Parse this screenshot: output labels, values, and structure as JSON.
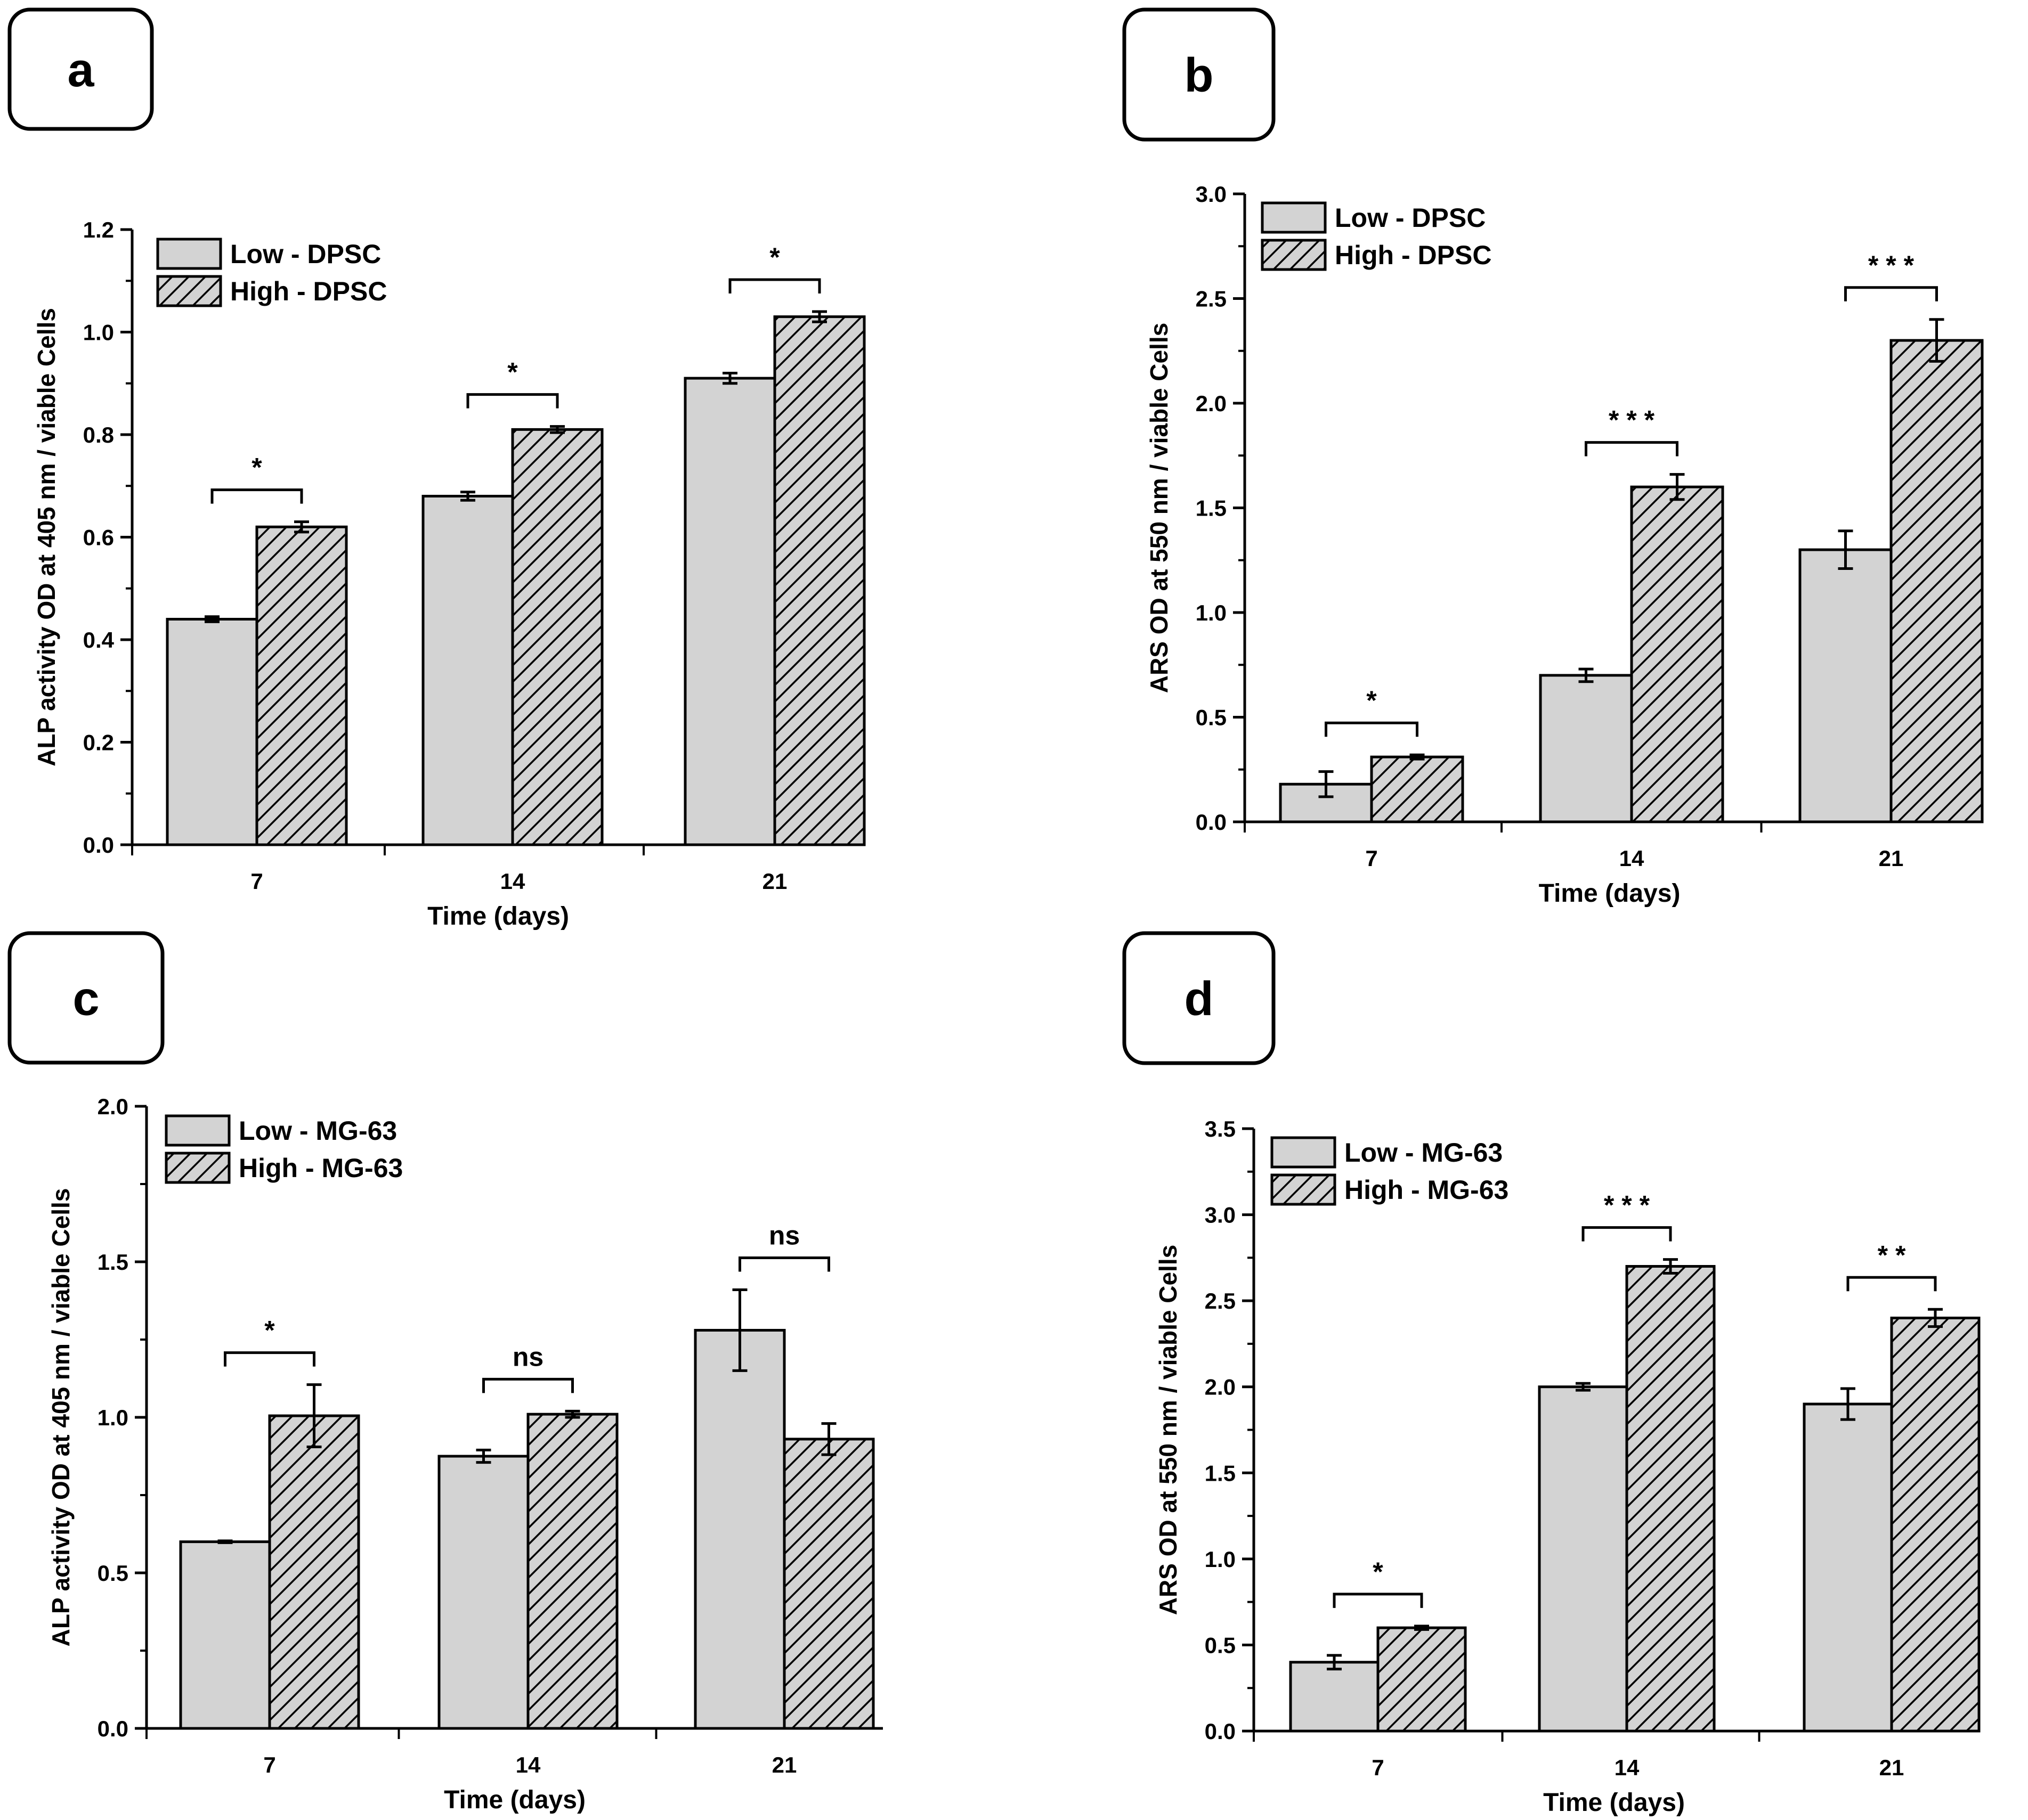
{
  "colors": {
    "low_fill": "#d3d3d3",
    "hatch_bg": "#d3d3d3",
    "stroke": "#000000"
  },
  "chart_data": [
    {
      "panel": "a",
      "type": "bar",
      "categories": [
        "7",
        "14",
        "21"
      ],
      "series": [
        {
          "name": "Low - DPSC",
          "values": [
            0.44,
            0.68,
            0.91
          ],
          "errors": [
            0.005,
            0.008,
            0.01
          ]
        },
        {
          "name": "High - DPSC",
          "values": [
            0.62,
            0.81,
            1.03
          ],
          "errors": [
            0.01,
            0.006,
            0.01
          ]
        }
      ],
      "significance": [
        "*",
        "*",
        "*"
      ],
      "xlabel": "Time (days)",
      "ylabel": "ALP activity  OD at 405 nm / viable Cells",
      "ylim": [
        0,
        1.2
      ],
      "yticks": [
        0.0,
        0.2,
        0.4,
        0.6,
        0.8,
        1.0,
        1.2
      ],
      "ytick_labels": [
        "0.0",
        "0.2",
        "0.4",
        "0.6",
        "0.8",
        "1.0",
        "1.2"
      ],
      "legend": [
        "Low - DPSC",
        "High - DPSC"
      ],
      "legend_position": "top-left"
    },
    {
      "panel": "b",
      "type": "bar",
      "categories": [
        "7",
        "14",
        "21"
      ],
      "series": [
        {
          "name": "Low - DPSC",
          "values": [
            0.18,
            0.7,
            1.3
          ],
          "errors": [
            0.06,
            0.03,
            0.09
          ]
        },
        {
          "name": "High - DPSC",
          "values": [
            0.31,
            1.6,
            2.3
          ],
          "errors": [
            0.01,
            0.06,
            0.1
          ]
        }
      ],
      "significance": [
        "*",
        "* * *",
        "* * *"
      ],
      "xlabel": "Time (days)",
      "ylabel": "ARS  OD at 550 nm / viable Cells",
      "ylim": [
        0,
        3.0
      ],
      "yticks": [
        0.0,
        0.5,
        1.0,
        1.5,
        2.0,
        2.5,
        3.0
      ],
      "ytick_labels": [
        "0.0",
        "0.5",
        "1.0",
        "1.5",
        "2.0",
        "2.5",
        "3.0"
      ],
      "legend": [
        "Low - DPSC",
        "High - DPSC"
      ],
      "legend_position": "top-left"
    },
    {
      "panel": "c",
      "type": "bar",
      "categories": [
        "7",
        "14",
        "21"
      ],
      "series": [
        {
          "name": "Low - MG-63",
          "values": [
            0.6,
            0.875,
            1.28
          ],
          "errors": [
            0.003,
            0.02,
            0.13
          ]
        },
        {
          "name": "High - MG-63",
          "values": [
            1.005,
            1.01,
            0.93
          ],
          "errors": [
            0.1,
            0.01,
            0.05
          ]
        }
      ],
      "significance": [
        "*",
        "ns",
        "ns"
      ],
      "xlabel": "Time (days)",
      "ylabel": "ALP activity  OD at 405 nm / viable Cells",
      "ylim": [
        0,
        2.0
      ],
      "yticks": [
        0.0,
        0.5,
        1.0,
        1.5,
        2.0
      ],
      "ytick_labels": [
        "0.0",
        "0.5",
        "1.0",
        "1.5",
        "2.0"
      ],
      "legend": [
        "Low - MG-63",
        "High - MG-63"
      ],
      "legend_position": "top-left"
    },
    {
      "panel": "d",
      "type": "bar",
      "categories": [
        "7",
        "14",
        "21"
      ],
      "series": [
        {
          "name": "Low - MG-63",
          "values": [
            0.4,
            2.0,
            1.9
          ],
          "errors": [
            0.04,
            0.02,
            0.09
          ]
        },
        {
          "name": "High - MG-63",
          "values": [
            0.6,
            2.7,
            2.4
          ],
          "errors": [
            0.01,
            0.04,
            0.05
          ]
        }
      ],
      "significance": [
        "*",
        "* * *",
        "* *"
      ],
      "xlabel": "Time (days)",
      "ylabel": "ARS  OD at 550 nm / viable Cells",
      "ylim": [
        0,
        3.5
      ],
      "yticks": [
        0.0,
        0.5,
        1.0,
        1.5,
        2.0,
        2.5,
        3.0,
        3.5
      ],
      "ytick_labels": [
        "0.0",
        "0.5",
        "1.0",
        "1.5",
        "2.0",
        "2.5",
        "3.0",
        "3.5"
      ],
      "legend": [
        "Low - MG-63",
        "High - MG-63"
      ],
      "legend_position": "top-left"
    }
  ]
}
